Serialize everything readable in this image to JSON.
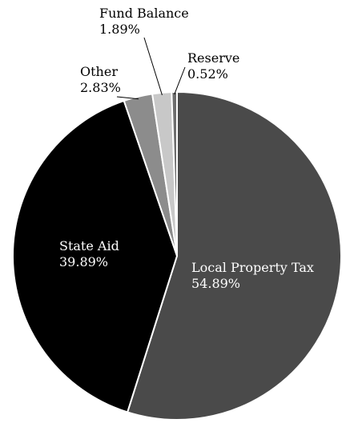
{
  "chart_data": {
    "type": "pie",
    "title": "",
    "slices": [
      {
        "label": "Local Property Tax",
        "value": 54.89,
        "value_label": "54.89%",
        "color": "#4a4a4a"
      },
      {
        "label": "State Aid",
        "value": 39.89,
        "value_label": "39.89%",
        "color": "#000000"
      },
      {
        "label": "Other",
        "value": 2.83,
        "value_label": "2.83%",
        "color": "#8c8c8c"
      },
      {
        "label": "Fund Balance",
        "value": 1.89,
        "value_label": "1.89%",
        "color": "#c8c8c8"
      },
      {
        "label": "Reserve",
        "value": 0.52,
        "value_label": "0.52%",
        "color": "#6e6e6e"
      }
    ],
    "legend": "none",
    "label_colors": {
      "inside": "#ffffff",
      "outside": "#000000"
    },
    "slice_border_color": "#ffffff"
  }
}
